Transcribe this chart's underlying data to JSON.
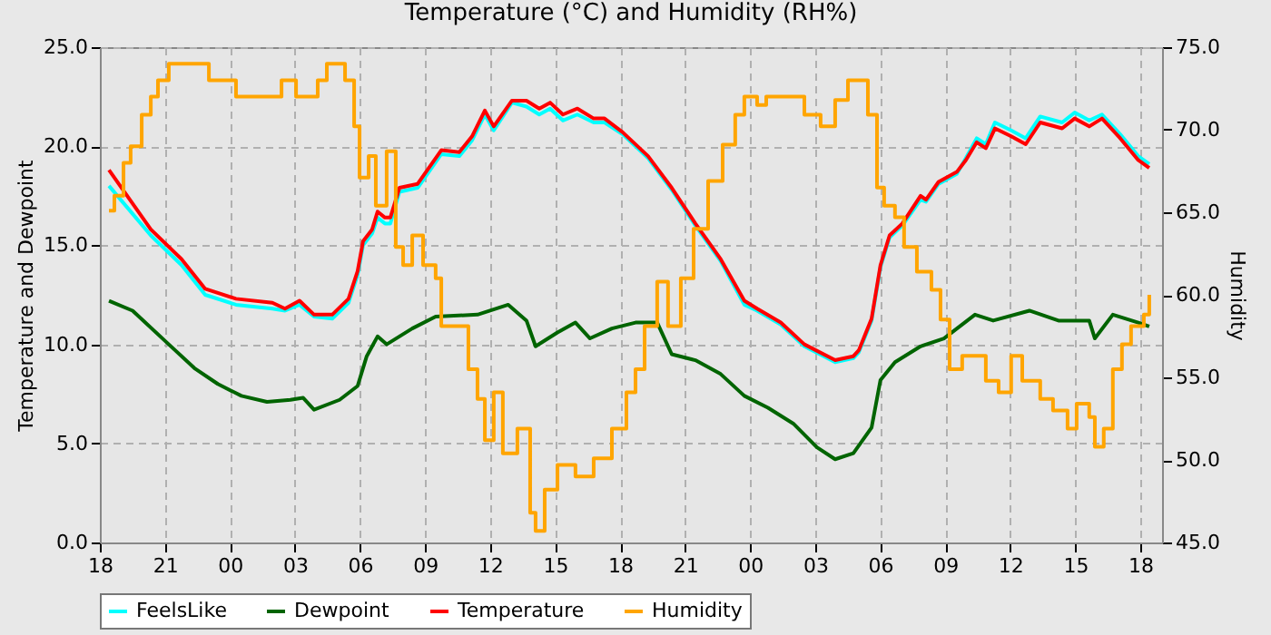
{
  "chart_data": {
    "type": "line",
    "title": "Temperature (°C) and Humidity (RH%)",
    "ylabel": "Temperature and Dewpoint",
    "y2label": "Humidity",
    "xlim": [
      18,
      67
    ],
    "ylim": [
      0,
      25
    ],
    "y2lim": [
      45,
      75
    ],
    "xticks": [
      {
        "value": 18,
        "label": "18"
      },
      {
        "value": 21,
        "label": "21"
      },
      {
        "value": 24,
        "label": "00"
      },
      {
        "value": 27,
        "label": "03"
      },
      {
        "value": 30,
        "label": "06"
      },
      {
        "value": 33,
        "label": "09"
      },
      {
        "value": 36,
        "label": "12"
      },
      {
        "value": 39,
        "label": "15"
      },
      {
        "value": 42,
        "label": "18"
      },
      {
        "value": 45,
        "label": "21"
      },
      {
        "value": 48,
        "label": "00"
      },
      {
        "value": 51,
        "label": "03"
      },
      {
        "value": 54,
        "label": "06"
      },
      {
        "value": 57,
        "label": "09"
      },
      {
        "value": 60,
        "label": "12"
      },
      {
        "value": 63,
        "label": "15"
      },
      {
        "value": 66,
        "label": "18"
      }
    ],
    "yticks": [
      {
        "value": 0,
        "label": "0.0"
      },
      {
        "value": 5,
        "label": "5.0"
      },
      {
        "value": 10,
        "label": "10.0"
      },
      {
        "value": 15,
        "label": "15.0"
      },
      {
        "value": 20,
        "label": "20.0"
      },
      {
        "value": 25,
        "label": "25.0"
      }
    ],
    "y2ticks": [
      {
        "value": 45,
        "label": "45.0"
      },
      {
        "value": 50,
        "label": "50.0"
      },
      {
        "value": 55,
        "label": "55.0"
      },
      {
        "value": 60,
        "label": "60.0"
      },
      {
        "value": 65,
        "label": "65.0"
      },
      {
        "value": 70,
        "label": "70.0"
      },
      {
        "value": 75,
        "label": "75.0"
      }
    ],
    "grid": true,
    "legend": "bottom",
    "marker": "none",
    "series": [
      {
        "name": "FeelsLike",
        "color": "#00ffff",
        "type": "line",
        "x": [
          18.42,
          20.35,
          21.77,
          22.86,
          24.28,
          25.96,
          26.54,
          27.21,
          27.88,
          28.72,
          29.47,
          29.89,
          30.14,
          30.56,
          30.81,
          31.15,
          31.4,
          31.82,
          32.66,
          33.75,
          34.58,
          35.17,
          35.76,
          36.17,
          37.01,
          37.68,
          38.27,
          38.77,
          39.36,
          40.03,
          40.78,
          41.28,
          42.12,
          43.29,
          44.38,
          45.47,
          46.64,
          47.73,
          48.32,
          49.41,
          50.5,
          51.92,
          52.76,
          53.01,
          53.6,
          54.01,
          54.43,
          55.02,
          55.86,
          56.11,
          56.69,
          57.53,
          57.95,
          58.45,
          58.87,
          59.29,
          60.04,
          60.71,
          61.38,
          62.39,
          62.97,
          63.64,
          64.23,
          65.07,
          65.9,
          66.41
        ],
        "values": [
          18.0,
          15.5,
          14.0,
          12.5,
          12.0,
          11.8,
          11.7,
          12.0,
          11.4,
          11.3,
          12.1,
          13.5,
          15.0,
          15.6,
          16.4,
          16.1,
          16.1,
          17.7,
          17.9,
          19.6,
          19.5,
          20.3,
          21.6,
          20.8,
          22.2,
          22.0,
          21.6,
          21.9,
          21.3,
          21.6,
          21.2,
          21.2,
          20.6,
          19.4,
          17.8,
          16.0,
          14.2,
          12.0,
          11.7,
          11.0,
          9.9,
          9.1,
          9.3,
          9.6,
          11.2,
          13.9,
          15.4,
          16.0,
          17.3,
          17.2,
          18.1,
          18.6,
          19.4,
          20.4,
          20.1,
          21.2,
          20.8,
          20.4,
          21.5,
          21.2,
          21.7,
          21.3,
          21.6,
          20.6,
          19.5,
          19.1
        ]
      },
      {
        "name": "Dewpoint",
        "color": "#006400",
        "type": "line",
        "x": [
          18.42,
          19.51,
          21.18,
          22.36,
          23.44,
          24.53,
          25.71,
          26.79,
          27.38,
          27.88,
          29.06,
          29.89,
          30.31,
          30.81,
          31.23,
          32.41,
          33.49,
          35.42,
          36.84,
          37.68,
          38.1,
          39.11,
          39.94,
          40.61,
          41.62,
          42.71,
          43.71,
          44.38,
          45.47,
          46.64,
          47.73,
          48.82,
          49.99,
          51.08,
          51.92,
          52.76,
          53.6,
          54.01,
          54.68,
          55.86,
          56.94,
          58.37,
          59.21,
          60.88,
          62.22,
          63.64,
          63.9,
          64.73,
          65.9,
          66.41
        ],
        "values": [
          12.2,
          11.7,
          10.0,
          8.8,
          8.0,
          7.4,
          7.1,
          7.2,
          7.3,
          6.7,
          7.2,
          7.9,
          9.4,
          10.4,
          10.0,
          10.8,
          11.4,
          11.5,
          12.0,
          11.2,
          9.9,
          10.6,
          11.1,
          10.3,
          10.8,
          11.1,
          11.1,
          9.5,
          9.2,
          8.5,
          7.4,
          6.8,
          6.0,
          4.8,
          4.2,
          4.5,
          5.8,
          8.2,
          9.1,
          9.9,
          10.3,
          11.5,
          11.2,
          11.7,
          11.2,
          11.2,
          10.3,
          11.5,
          11.1,
          10.9
        ]
      },
      {
        "name": "Temperature",
        "color": "#ff0000",
        "type": "line",
        "x": [
          18.42,
          20.35,
          21.77,
          22.86,
          24.28,
          25.96,
          26.54,
          27.21,
          27.88,
          28.72,
          29.47,
          29.89,
          30.14,
          30.56,
          30.81,
          31.15,
          31.4,
          31.82,
          32.66,
          33.75,
          34.58,
          35.17,
          35.76,
          36.17,
          37.01,
          37.68,
          38.27,
          38.77,
          39.36,
          40.03,
          40.78,
          41.28,
          42.12,
          43.29,
          44.38,
          45.47,
          46.64,
          47.73,
          48.32,
          49.41,
          50.5,
          51.92,
          52.76,
          53.01,
          53.6,
          54.01,
          54.43,
          55.02,
          55.86,
          56.11,
          56.69,
          57.53,
          57.95,
          58.45,
          58.87,
          59.29,
          60.04,
          60.71,
          61.38,
          62.39,
          62.97,
          63.64,
          64.23,
          65.07,
          65.9,
          66.41
        ],
        "values": [
          18.8,
          15.8,
          14.3,
          12.8,
          12.3,
          12.1,
          11.8,
          12.2,
          11.5,
          11.5,
          12.3,
          13.7,
          15.2,
          15.8,
          16.7,
          16.4,
          16.4,
          17.9,
          18.1,
          19.8,
          19.7,
          20.5,
          21.8,
          21.0,
          22.3,
          22.3,
          21.9,
          22.2,
          21.6,
          21.9,
          21.4,
          21.4,
          20.7,
          19.5,
          17.9,
          16.1,
          14.3,
          12.2,
          11.8,
          11.1,
          10.0,
          9.2,
          9.4,
          9.7,
          11.3,
          14.0,
          15.5,
          16.1,
          17.5,
          17.3,
          18.2,
          18.7,
          19.3,
          20.2,
          19.9,
          20.9,
          20.5,
          20.1,
          21.2,
          20.9,
          21.4,
          21.0,
          21.4,
          20.4,
          19.3,
          18.9
        ]
      },
      {
        "name": "Humidity",
        "color": "#ffa500",
        "type": "step",
        "axis": "y2",
        "x": [
          18.42,
          18.67,
          19.09,
          19.42,
          19.93,
          20.35,
          20.68,
          21.18,
          23.03,
          24.28,
          26.38,
          27.05,
          28.05,
          28.47,
          29.31,
          29.73,
          29.98,
          30.4,
          30.73,
          31.23,
          31.65,
          31.99,
          32.41,
          32.91,
          33.49,
          33.75,
          35.0,
          35.42,
          35.76,
          36.17,
          36.59,
          37.26,
          37.85,
          38.1,
          38.52,
          39.11,
          39.94,
          40.78,
          41.62,
          42.29,
          42.71,
          43.13,
          43.71,
          44.21,
          44.8,
          45.39,
          46.06,
          46.73,
          47.31,
          47.73,
          48.32,
          48.74,
          50.5,
          51.25,
          51.92,
          52.51,
          53.43,
          53.85,
          54.18,
          54.68,
          55.1,
          55.69,
          56.36,
          56.78,
          57.2,
          57.78,
          58.87,
          59.46,
          60.04,
          60.55,
          61.38,
          61.97,
          62.64,
          63.06,
          63.64,
          63.9,
          64.31,
          64.73,
          65.15,
          65.57,
          66.16,
          66.41
        ],
        "values": [
          65.1,
          66.0,
          68.0,
          69.0,
          70.9,
          72.0,
          73.0,
          74.0,
          73.0,
          72.0,
          73.0,
          72.0,
          73.0,
          74.0,
          73.0,
          70.2,
          67.1,
          68.4,
          65.4,
          68.7,
          62.9,
          61.8,
          63.6,
          61.8,
          61.0,
          58.1,
          55.5,
          53.7,
          51.2,
          54.1,
          50.4,
          51.9,
          46.8,
          45.7,
          48.2,
          49.7,
          49.0,
          50.1,
          51.9,
          54.1,
          55.5,
          58.1,
          60.8,
          58.1,
          61.0,
          64.0,
          66.9,
          69.1,
          70.9,
          72.0,
          71.5,
          72.0,
          70.9,
          70.2,
          71.8,
          73.0,
          70.9,
          66.5,
          65.4,
          64.7,
          62.9,
          61.4,
          60.3,
          58.5,
          55.5,
          56.3,
          54.8,
          54.1,
          56.3,
          54.8,
          53.7,
          53.0,
          51.9,
          53.4,
          52.6,
          50.8,
          51.9,
          55.5,
          57.0,
          58.1,
          58.8,
          60.0
        ]
      }
    ]
  }
}
